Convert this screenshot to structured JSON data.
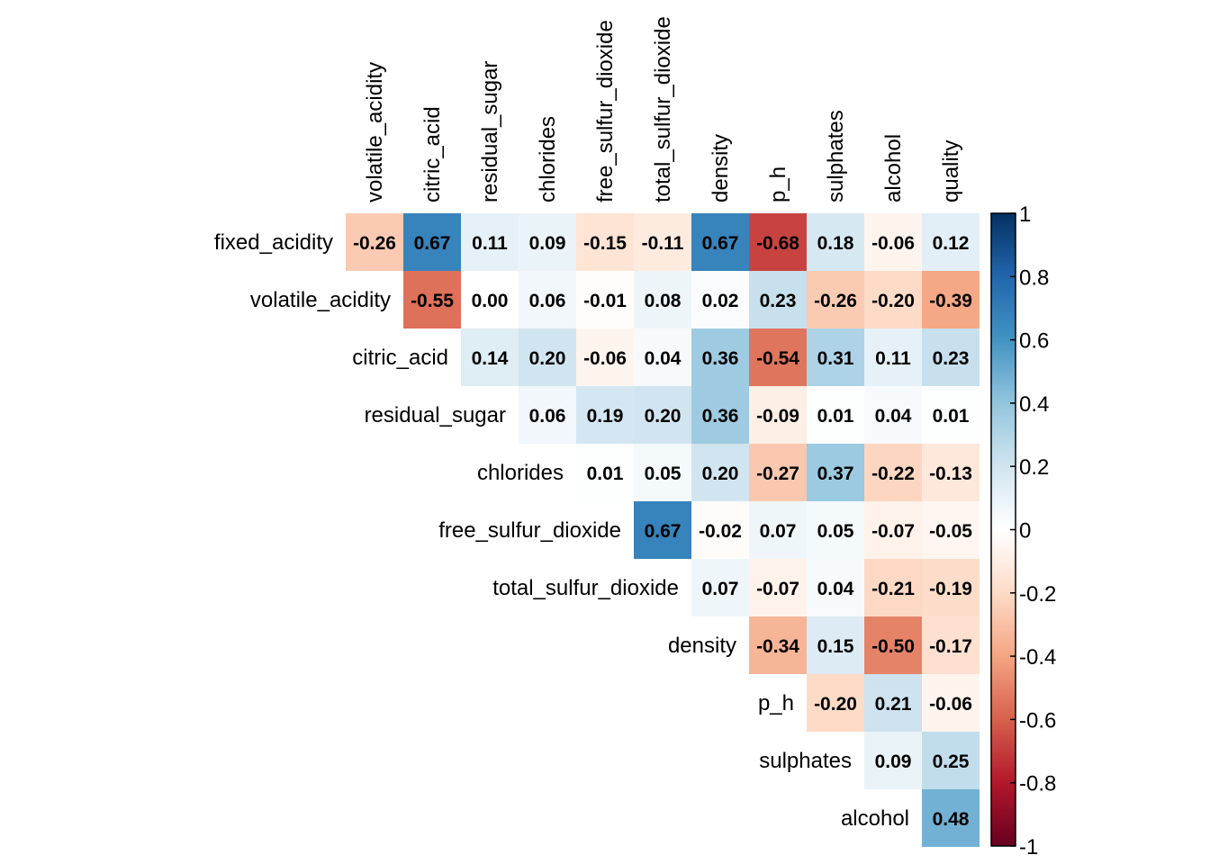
{
  "chart_data": {
    "type": "heatmap",
    "title": "",
    "row_labels": [
      "fixed_acidity",
      "volatile_acidity",
      "citric_acid",
      "residual_sugar",
      "chlorides",
      "free_sulfur_dioxide",
      "total_sulfur_dioxide",
      "density",
      "p_h",
      "sulphates",
      "alcohol"
    ],
    "col_labels": [
      "volatile_acidity",
      "citric_acid",
      "residual_sugar",
      "chlorides",
      "free_sulfur_dioxide",
      "total_sulfur_dioxide",
      "density",
      "p_h",
      "sulphates",
      "alcohol",
      "quality"
    ],
    "matrix": [
      [
        "-0.26",
        "0.67",
        "0.11",
        "0.09",
        "-0.15",
        "-0.11",
        "0.67",
        "-0.68",
        "0.18",
        "-0.06",
        "0.12"
      ],
      [
        "-0.55",
        "0.00",
        "0.06",
        "-0.01",
        "0.08",
        "0.02",
        "0.23",
        "-0.26",
        "-0.20",
        "-0.39"
      ],
      [
        "0.14",
        "0.20",
        "-0.06",
        "0.04",
        "0.36",
        "-0.54",
        "0.31",
        "0.11",
        "0.23"
      ],
      [
        "0.06",
        "0.19",
        "0.20",
        "0.36",
        "-0.09",
        "0.01",
        "0.04",
        "0.01"
      ],
      [
        "0.01",
        "0.05",
        "0.20",
        "-0.27",
        "0.37",
        "-0.22",
        "-0.13"
      ],
      [
        "0.67",
        "-0.02",
        "0.07",
        "0.05",
        "-0.07",
        "-0.05"
      ],
      [
        "0.07",
        "-0.07",
        "0.04",
        "-0.21",
        "-0.19"
      ],
      [
        "-0.34",
        "0.15",
        "-0.50",
        "-0.17"
      ],
      [
        "-0.20",
        "0.21",
        "-0.06"
      ],
      [
        "0.09",
        "0.25"
      ],
      [
        "0.48"
      ]
    ],
    "colorbar": {
      "range": [
        -1,
        1
      ],
      "tick_labels": [
        "1",
        "0.8",
        "0.6",
        "0.4",
        "0.2",
        "0",
        "-0.2",
        "-0.4",
        "-0.6",
        "-0.8",
        "-1"
      ],
      "colors": [
        "#67001F",
        "#B2182B",
        "#D6604D",
        "#F4A582",
        "#FDDBC7",
        "#FFFFFF",
        "#D1E5F0",
        "#92C5DE",
        "#4393C3",
        "#2166AC",
        "#053061"
      ]
    }
  }
}
